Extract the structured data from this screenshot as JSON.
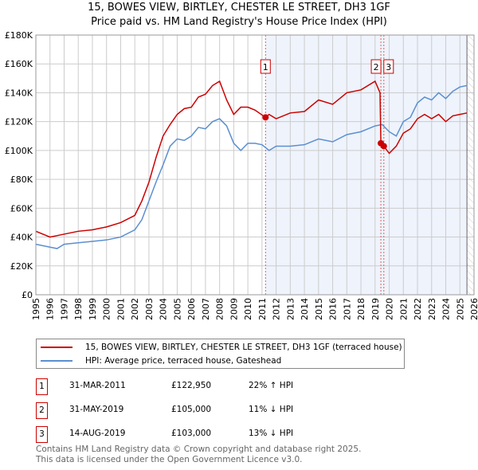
{
  "chart_data": {
    "type": "line",
    "title": "15, BOWES VIEW, BIRTLEY, CHESTER LE STREET, DH3 1GF",
    "subtitle": "Price paid vs. HM Land Registry's House Price Index (HPI)",
    "xlim": [
      1995,
      2026
    ],
    "ylim": [
      0,
      180000
    ],
    "x_ticks": [
      "1995",
      "1996",
      "1997",
      "1998",
      "1999",
      "2000",
      "2001",
      "2002",
      "2003",
      "2004",
      "2005",
      "2006",
      "2007",
      "2008",
      "2009",
      "2010",
      "2011",
      "2012",
      "2013",
      "2014",
      "2015",
      "2016",
      "2017",
      "2018",
      "2019",
      "2020",
      "2021",
      "2022",
      "2023",
      "2024",
      "2025",
      "2026"
    ],
    "y_ticks": [
      {
        "v": 0,
        "label": "£0"
      },
      {
        "v": 20000,
        "label": "£20K"
      },
      {
        "v": 40000,
        "label": "£40K"
      },
      {
        "v": 60000,
        "label": "£60K"
      },
      {
        "v": 80000,
        "label": "£80K"
      },
      {
        "v": 100000,
        "label": "£100K"
      },
      {
        "v": 120000,
        "label": "£120K"
      },
      {
        "v": 140000,
        "label": "£140K"
      },
      {
        "v": 160000,
        "label": "£160K"
      },
      {
        "v": 180000,
        "label": "£180K"
      }
    ],
    "grid": true,
    "shaded_from": 2011.25,
    "data_end": 2025.5,
    "series": [
      {
        "name": "15, BOWES VIEW, BIRTLEY, CHESTER LE STREET, DH3 1GF (terraced house)",
        "color": "#cc0000",
        "x": [
          1995,
          1996,
          1997,
          1998,
          1999,
          2000,
          2001,
          2002,
          2002.5,
          2003,
          2003.5,
          2004,
          2004.5,
          2005,
          2005.5,
          2006,
          2006.5,
          2007,
          2007.5,
          2008,
          2008.5,
          2009,
          2009.5,
          2010,
          2010.5,
          2011.25,
          2011.5,
          2012,
          2013,
          2014,
          2015,
          2016,
          2017,
          2018,
          2019,
          2019.35,
          2019.41,
          2019.62,
          2020,
          2020.5,
          2021,
          2021.5,
          2022,
          2022.5,
          2023,
          2023.5,
          2024,
          2024.5,
          2025,
          2025.5
        ],
        "y": [
          44000,
          40000,
          42000,
          44000,
          45000,
          47000,
          50000,
          55000,
          65000,
          78000,
          95000,
          110000,
          118000,
          125000,
          129000,
          130000,
          137000,
          139000,
          145000,
          148000,
          135000,
          125000,
          130000,
          130000,
          128000,
          122950,
          125000,
          122000,
          126000,
          127000,
          135000,
          132000,
          140000,
          142000,
          148000,
          140000,
          105000,
          103000,
          98000,
          103000,
          112000,
          115000,
          122000,
          125000,
          122000,
          125000,
          120000,
          124000,
          125000,
          126000
        ]
      },
      {
        "name": "HPI: Average price, terraced house, Gateshead",
        "color": "#5b8fd0",
        "x": [
          1995,
          1996,
          1996.5,
          1997,
          1998,
          1999,
          2000,
          2001,
          2002,
          2002.5,
          2003,
          2003.5,
          2004,
          2004.5,
          2005,
          2005.5,
          2006,
          2006.5,
          2007,
          2007.5,
          2008,
          2008.5,
          2009,
          2009.5,
          2010,
          2010.5,
          2011,
          2011.5,
          2012,
          2013,
          2014,
          2015,
          2016,
          2017,
          2018,
          2019,
          2019.5,
          2020,
          2020.5,
          2021,
          2021.5,
          2022,
          2022.5,
          2023,
          2023.5,
          2024,
          2024.5,
          2025,
          2025.5
        ],
        "y": [
          35000,
          33000,
          32000,
          35000,
          36000,
          37000,
          38000,
          40000,
          45000,
          52000,
          65000,
          78000,
          90000,
          103000,
          108000,
          107000,
          110000,
          116000,
          115000,
          120000,
          122000,
          117000,
          105000,
          100000,
          105000,
          105000,
          104000,
          100000,
          103000,
          103000,
          104000,
          108000,
          106000,
          111000,
          113000,
          117000,
          118000,
          113000,
          110000,
          120000,
          123000,
          133000,
          137000,
          135000,
          140000,
          136000,
          141000,
          144000,
          145000
        ]
      }
    ],
    "sales": [
      {
        "id": "1",
        "x": 2011.25,
        "y": 122950,
        "date": "31-MAR-2011",
        "price": "£122,950",
        "hpi": "22% ↑ HPI"
      },
      {
        "id": "2",
        "x": 2019.41,
        "y": 105000,
        "date": "31-MAY-2019",
        "price": "£105,000",
        "hpi": "11% ↓ HPI"
      },
      {
        "id": "3",
        "x": 2019.62,
        "y": 103000,
        "date": "14-AUG-2019",
        "price": "£103,000",
        "hpi": "13% ↓ HPI"
      }
    ]
  },
  "footer": {
    "line1": "Contains HM Land Registry data © Crown copyright and database right 2025.",
    "line2": "This data is licensed under the Open Government Licence v3.0."
  }
}
